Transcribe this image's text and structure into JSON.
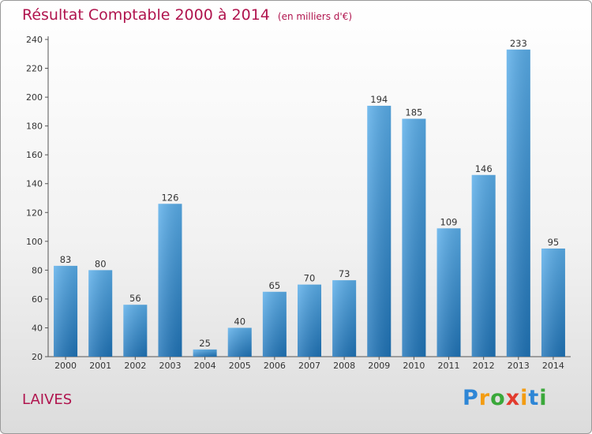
{
  "title": {
    "main": "Résultat Comptable 2000 à 2014",
    "unit": "(en milliers d'€)"
  },
  "commune": "LAIVES",
  "logo": {
    "text": "Proxiti",
    "letter_colors": [
      "#2e86d6",
      "#f39c12",
      "#3aa83a",
      "#e23b2e",
      "#f39c12",
      "#2e86d6",
      "#3aa83a"
    ]
  },
  "colors": {
    "title": "#b0144e",
    "bar_light": "#5aaeea",
    "bar_dark": "#1f74b8"
  },
  "chart_data": {
    "type": "bar",
    "categories": [
      "2000",
      "2001",
      "2002",
      "2003",
      "2004",
      "2005",
      "2006",
      "2007",
      "2008",
      "2009",
      "2010",
      "2011",
      "2012",
      "2013",
      "2014"
    ],
    "values": [
      83,
      80,
      56,
      126,
      25,
      40,
      65,
      70,
      73,
      194,
      185,
      109,
      146,
      233,
      95
    ],
    "ylim": [
      20,
      240
    ],
    "yticks": [
      20,
      40,
      60,
      80,
      100,
      120,
      140,
      160,
      180,
      200,
      220,
      240
    ],
    "grid": false,
    "data_labels": true
  }
}
